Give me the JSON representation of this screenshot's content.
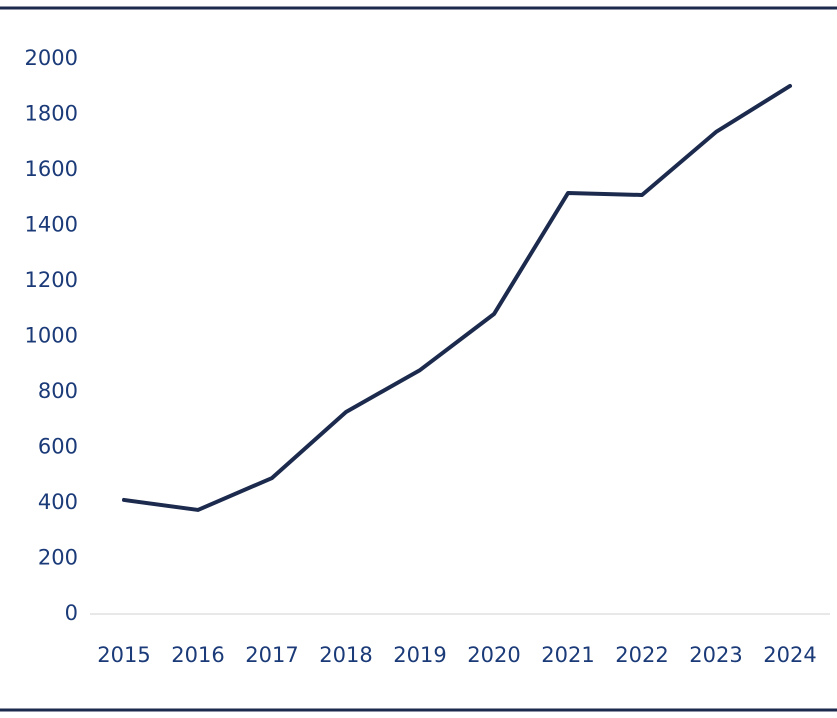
{
  "chart_data": {
    "type": "line",
    "categories": [
      "2015",
      "2016",
      "2017",
      "2018",
      "2019",
      "2020",
      "2021",
      "2022",
      "2023",
      "2024"
    ],
    "series": [
      {
        "color": "#1c2a4e",
        "values": [
          411,
          375,
          490,
          728,
          879,
          1081,
          1517,
          1510,
          1737,
          1903
        ]
      }
    ],
    "ylim": [
      0,
      2000
    ],
    "yticks": [
      0,
      200,
      400,
      600,
      800,
      1000,
      1200,
      1400,
      1600,
      1800,
      2000
    ],
    "grid": false
  }
}
